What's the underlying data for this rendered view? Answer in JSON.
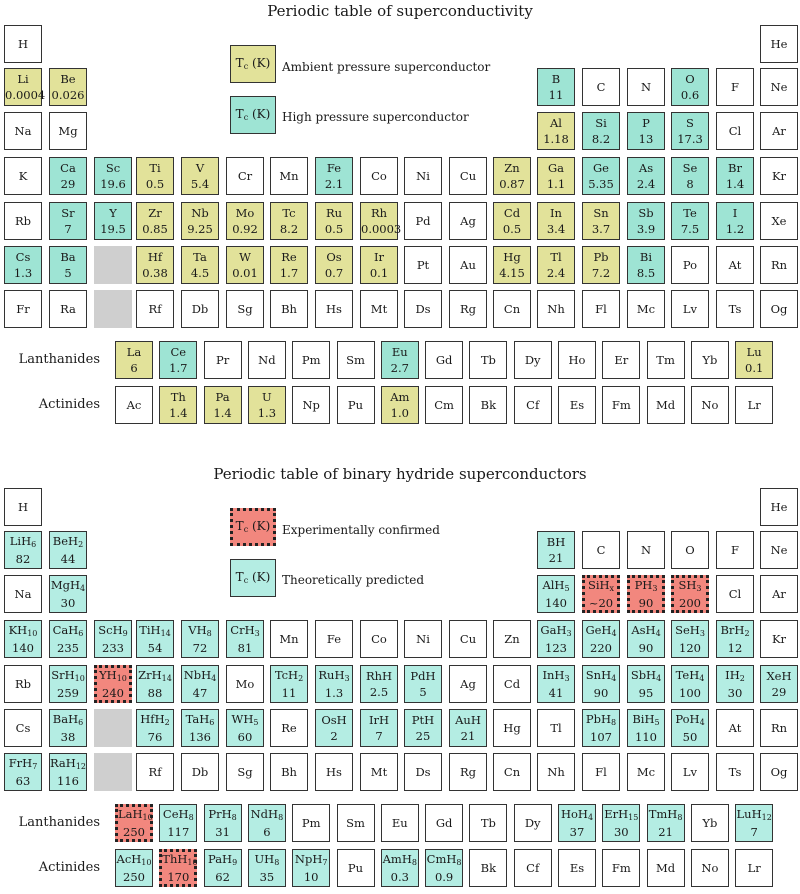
{
  "top": {
    "title": "Periodic table of superconductivity",
    "legend": [
      {
        "label": "T_c (K)",
        "text": "Ambient pressure superconductor",
        "type": "amb"
      },
      {
        "label": "T_c (K)",
        "text": "High pressure superconductor",
        "type": "hp"
      }
    ],
    "rows": [
      [
        {
          "c": 1,
          "s": "H"
        },
        {
          "c": 18,
          "s": "He"
        }
      ],
      [
        {
          "c": 1,
          "s": "Li",
          "v": "0.0004",
          "t": "amb"
        },
        {
          "c": 2,
          "s": "Be",
          "v": "0.026",
          "t": "amb"
        },
        {
          "c": 13,
          "s": "B",
          "v": "11",
          "t": "hp"
        },
        {
          "c": 14,
          "s": "C"
        },
        {
          "c": 15,
          "s": "N"
        },
        {
          "c": 16,
          "s": "O",
          "v": "0.6",
          "t": "hp"
        },
        {
          "c": 17,
          "s": "F"
        },
        {
          "c": 18,
          "s": "Ne"
        }
      ],
      [
        {
          "c": 1,
          "s": "Na"
        },
        {
          "c": 2,
          "s": "Mg"
        },
        {
          "c": 13,
          "s": "Al",
          "v": "1.18",
          "t": "amb"
        },
        {
          "c": 14,
          "s": "Si",
          "v": "8.2",
          "t": "hp"
        },
        {
          "c": 15,
          "s": "P",
          "v": "13",
          "t": "hp"
        },
        {
          "c": 16,
          "s": "S",
          "v": "17.3",
          "t": "hp"
        },
        {
          "c": 17,
          "s": "Cl"
        },
        {
          "c": 18,
          "s": "Ar"
        }
      ],
      [
        {
          "c": 1,
          "s": "K"
        },
        {
          "c": 2,
          "s": "Ca",
          "v": "29",
          "t": "hp"
        },
        {
          "c": 3,
          "s": "Sc",
          "v": "19.6",
          "t": "hp"
        },
        {
          "c": 4,
          "s": "Ti",
          "v": "0.5",
          "t": "amb"
        },
        {
          "c": 5,
          "s": "V",
          "v": "5.4",
          "t": "amb"
        },
        {
          "c": 6,
          "s": "Cr"
        },
        {
          "c": 7,
          "s": "Mn"
        },
        {
          "c": 8,
          "s": "Fe",
          "v": "2.1",
          "t": "hp"
        },
        {
          "c": 9,
          "s": "Co"
        },
        {
          "c": 10,
          "s": "Ni"
        },
        {
          "c": 11,
          "s": "Cu"
        },
        {
          "c": 12,
          "s": "Zn",
          "v": "0.87",
          "t": "amb"
        },
        {
          "c": 13,
          "s": "Ga",
          "v": "1.1",
          "t": "amb"
        },
        {
          "c": 14,
          "s": "Ge",
          "v": "5.35",
          "t": "hp"
        },
        {
          "c": 15,
          "s": "As",
          "v": "2.4",
          "t": "hp"
        },
        {
          "c": 16,
          "s": "Se",
          "v": "8",
          "t": "hp"
        },
        {
          "c": 17,
          "s": "Br",
          "v": "1.4",
          "t": "hp"
        },
        {
          "c": 18,
          "s": "Kr"
        }
      ],
      [
        {
          "c": 1,
          "s": "Rb"
        },
        {
          "c": 2,
          "s": "Sr",
          "v": "7",
          "t": "hp"
        },
        {
          "c": 3,
          "s": "Y",
          "v": "19.5",
          "t": "hp"
        },
        {
          "c": 4,
          "s": "Zr",
          "v": "0.85",
          "t": "amb"
        },
        {
          "c": 5,
          "s": "Nb",
          "v": "9.25",
          "t": "amb"
        },
        {
          "c": 6,
          "s": "Mo",
          "v": "0.92",
          "t": "amb"
        },
        {
          "c": 7,
          "s": "Tc",
          "v": "8.2",
          "t": "amb"
        },
        {
          "c": 8,
          "s": "Ru",
          "v": "0.5",
          "t": "amb"
        },
        {
          "c": 9,
          "s": "Rh",
          "v": "0.0003",
          "t": "amb"
        },
        {
          "c": 10,
          "s": "Pd"
        },
        {
          "c": 11,
          "s": "Ag"
        },
        {
          "c": 12,
          "s": "Cd",
          "v": "0.5",
          "t": "amb"
        },
        {
          "c": 13,
          "s": "In",
          "v": "3.4",
          "t": "amb"
        },
        {
          "c": 14,
          "s": "Sn",
          "v": "3.7",
          "t": "amb"
        },
        {
          "c": 15,
          "s": "Sb",
          "v": "3.9",
          "t": "hp"
        },
        {
          "c": 16,
          "s": "Te",
          "v": "7.5",
          "t": "hp"
        },
        {
          "c": 17,
          "s": "I",
          "v": "1.2",
          "t": "hp"
        },
        {
          "c": 18,
          "s": "Xe"
        }
      ],
      [
        {
          "c": 1,
          "s": "Cs",
          "v": "1.3",
          "t": "hp"
        },
        {
          "c": 2,
          "s": "Ba",
          "v": "5",
          "t": "hp"
        },
        {
          "c": 3,
          "s": "",
          "t": "gap"
        },
        {
          "c": 4,
          "s": "Hf",
          "v": "0.38",
          "t": "amb"
        },
        {
          "c": 5,
          "s": "Ta",
          "v": "4.5",
          "t": "amb"
        },
        {
          "c": 6,
          "s": "W",
          "v": "0.01",
          "t": "amb"
        },
        {
          "c": 7,
          "s": "Re",
          "v": "1.7",
          "t": "amb"
        },
        {
          "c": 8,
          "s": "Os",
          "v": "0.7",
          "t": "amb"
        },
        {
          "c": 9,
          "s": "Ir",
          "v": "0.1",
          "t": "amb"
        },
        {
          "c": 10,
          "s": "Pt"
        },
        {
          "c": 11,
          "s": "Au"
        },
        {
          "c": 12,
          "s": "Hg",
          "v": "4.15",
          "t": "amb"
        },
        {
          "c": 13,
          "s": "Tl",
          "v": "2.4",
          "t": "amb"
        },
        {
          "c": 14,
          "s": "Pb",
          "v": "7.2",
          "t": "amb"
        },
        {
          "c": 15,
          "s": "Bi",
          "v": "8.5",
          "t": "hp"
        },
        {
          "c": 16,
          "s": "Po"
        },
        {
          "c": 17,
          "s": "At"
        },
        {
          "c": 18,
          "s": "Rn"
        }
      ],
      [
        {
          "c": 1,
          "s": "Fr"
        },
        {
          "c": 2,
          "s": "Ra"
        },
        {
          "c": 3,
          "s": "",
          "t": "gap"
        },
        {
          "c": 4,
          "s": "Rf"
        },
        {
          "c": 5,
          "s": "Db"
        },
        {
          "c": 6,
          "s": "Sg"
        },
        {
          "c": 7,
          "s": "Bh"
        },
        {
          "c": 8,
          "s": "Hs"
        },
        {
          "c": 9,
          "s": "Mt"
        },
        {
          "c": 10,
          "s": "Ds"
        },
        {
          "c": 11,
          "s": "Rg"
        },
        {
          "c": 12,
          "s": "Cn"
        },
        {
          "c": 13,
          "s": "Nh"
        },
        {
          "c": 14,
          "s": "Fl"
        },
        {
          "c": 15,
          "s": "Mc"
        },
        {
          "c": 16,
          "s": "Lv"
        },
        {
          "c": 17,
          "s": "Ts"
        },
        {
          "c": 18,
          "s": "Og"
        }
      ]
    ],
    "lanthanides_label": "Lanthanides",
    "lanthanides": [
      {
        "s": "La",
        "v": "6",
        "t": "amb"
      },
      {
        "s": "Ce",
        "v": "1.7",
        "t": "hp"
      },
      {
        "s": "Pr"
      },
      {
        "s": "Nd"
      },
      {
        "s": "Pm"
      },
      {
        "s": "Sm"
      },
      {
        "s": "Eu",
        "v": "2.7",
        "t": "hp"
      },
      {
        "s": "Gd"
      },
      {
        "s": "Tb"
      },
      {
        "s": "Dy"
      },
      {
        "s": "Ho"
      },
      {
        "s": "Er"
      },
      {
        "s": "Tm"
      },
      {
        "s": "Yb"
      },
      {
        "s": "Lu",
        "v": "0.1",
        "t": "amb"
      }
    ],
    "actinides_label": "Actinides",
    "actinides": [
      {
        "s": "Ac"
      },
      {
        "s": "Th",
        "v": "1.4",
        "t": "amb"
      },
      {
        "s": "Pa",
        "v": "1.4",
        "t": "amb"
      },
      {
        "s": "U",
        "v": "1.3",
        "t": "amb"
      },
      {
        "s": "Np"
      },
      {
        "s": "Pu"
      },
      {
        "s": "Am",
        "v": "1.0",
        "t": "amb"
      },
      {
        "s": "Cm"
      },
      {
        "s": "Bk"
      },
      {
        "s": "Cf"
      },
      {
        "s": "Es"
      },
      {
        "s": "Fm"
      },
      {
        "s": "Md"
      },
      {
        "s": "No"
      },
      {
        "s": "Lr"
      }
    ]
  },
  "bottom": {
    "title": "Periodic table of binary hydride superconductors",
    "legend": [
      {
        "label": "T_c (K)",
        "text": "Experimentally confirmed",
        "type": "exp"
      },
      {
        "label": "T_c (K)",
        "text": "Theoretically predicted",
        "type": "theo"
      }
    ],
    "rows": [
      [
        {
          "c": 1,
          "s": "H"
        },
        {
          "c": 18,
          "s": "He"
        }
      ],
      [
        {
          "c": 1,
          "s": "LiH_6",
          "v": "82",
          "t": "theo"
        },
        {
          "c": 2,
          "s": "BeH_2",
          "v": "44",
          "t": "theo"
        },
        {
          "c": 13,
          "s": "BH",
          "v": "21",
          "t": "theo"
        },
        {
          "c": 14,
          "s": "C"
        },
        {
          "c": 15,
          "s": "N"
        },
        {
          "c": 16,
          "s": "O"
        },
        {
          "c": 17,
          "s": "F"
        },
        {
          "c": 18,
          "s": "Ne"
        }
      ],
      [
        {
          "c": 1,
          "s": "Na"
        },
        {
          "c": 2,
          "s": "MgH_4",
          "v": "30",
          "t": "theo"
        },
        {
          "c": 13,
          "s": "AlH_5",
          "v": "140",
          "t": "theo"
        },
        {
          "c": 14,
          "s": "SiH_x",
          "v": "~20",
          "t": "exp"
        },
        {
          "c": 15,
          "s": "PH_3",
          "v": "90",
          "t": "exp"
        },
        {
          "c": 16,
          "s": "SH_3",
          "v": "200",
          "t": "exp"
        },
        {
          "c": 17,
          "s": "Cl"
        },
        {
          "c": 18,
          "s": "Ar"
        }
      ],
      [
        {
          "c": 1,
          "s": "KH_10",
          "v": "140",
          "t": "theo"
        },
        {
          "c": 2,
          "s": "CaH_6",
          "v": "235",
          "t": "theo"
        },
        {
          "c": 3,
          "s": "ScH_9",
          "v": "233",
          "t": "theo"
        },
        {
          "c": 4,
          "s": "TiH_14",
          "v": "54",
          "t": "theo"
        },
        {
          "c": 5,
          "s": "VH_8",
          "v": "72",
          "t": "theo"
        },
        {
          "c": 6,
          "s": "CrH_3",
          "v": "81",
          "t": "theo"
        },
        {
          "c": 7,
          "s": "Mn"
        },
        {
          "c": 8,
          "s": "Fe"
        },
        {
          "c": 9,
          "s": "Co"
        },
        {
          "c": 10,
          "s": "Ni"
        },
        {
          "c": 11,
          "s": "Cu"
        },
        {
          "c": 12,
          "s": "Zn"
        },
        {
          "c": 13,
          "s": "GaH_3",
          "v": "123",
          "t": "theo"
        },
        {
          "c": 14,
          "s": "GeH_4",
          "v": "220",
          "t": "theo"
        },
        {
          "c": 15,
          "s": "AsH_4",
          "v": "90",
          "t": "theo"
        },
        {
          "c": 16,
          "s": "SeH_3",
          "v": "120",
          "t": "theo"
        },
        {
          "c": 17,
          "s": "BrH_2",
          "v": "12",
          "t": "theo"
        },
        {
          "c": 18,
          "s": "Kr"
        }
      ],
      [
        {
          "c": 1,
          "s": "Rb"
        },
        {
          "c": 2,
          "s": "SrH_10",
          "v": "259",
          "t": "theo"
        },
        {
          "c": 3,
          "s": "YH_10",
          "v": "240",
          "t": "exp"
        },
        {
          "c": 4,
          "s": "ZrH_14",
          "v": "88",
          "t": "theo"
        },
        {
          "c": 5,
          "s": "NbH_4",
          "v": "47",
          "t": "theo"
        },
        {
          "c": 6,
          "s": "Mo"
        },
        {
          "c": 7,
          "s": "TcH_2",
          "v": "11",
          "t": "theo"
        },
        {
          "c": 8,
          "s": "RuH_3",
          "v": "1.3",
          "t": "theo"
        },
        {
          "c": 9,
          "s": "RhH",
          "v": "2.5",
          "t": "theo"
        },
        {
          "c": 10,
          "s": "PdH",
          "v": "5",
          "t": "theo"
        },
        {
          "c": 11,
          "s": "Ag"
        },
        {
          "c": 12,
          "s": "Cd"
        },
        {
          "c": 13,
          "s": "InH_3",
          "v": "41",
          "t": "theo"
        },
        {
          "c": 14,
          "s": "SnH_4",
          "v": "90",
          "t": "theo"
        },
        {
          "c": 15,
          "s": "SbH_4",
          "v": "95",
          "t": "theo"
        },
        {
          "c": 16,
          "s": "TeH_4",
          "v": "100",
          "t": "theo"
        },
        {
          "c": 17,
          "s": "IH_2",
          "v": "30",
          "t": "theo"
        },
        {
          "c": 18,
          "s": "XeH",
          "v": "29",
          "t": "theo"
        }
      ],
      [
        {
          "c": 1,
          "s": "Cs"
        },
        {
          "c": 2,
          "s": "BaH_6",
          "v": "38",
          "t": "theo"
        },
        {
          "c": 3,
          "s": "",
          "t": "gap"
        },
        {
          "c": 4,
          "s": "HfH_2",
          "v": "76",
          "t": "theo"
        },
        {
          "c": 5,
          "s": "TaH_6",
          "v": "136",
          "t": "theo"
        },
        {
          "c": 6,
          "s": "WH_5",
          "v": "60",
          "t": "theo"
        },
        {
          "c": 7,
          "s": "Re"
        },
        {
          "c": 8,
          "s": "OsH",
          "v": "2",
          "t": "theo"
        },
        {
          "c": 9,
          "s": "IrH",
          "v": "7",
          "t": "theo"
        },
        {
          "c": 10,
          "s": "PtH",
          "v": "25",
          "t": "theo"
        },
        {
          "c": 11,
          "s": "AuH",
          "v": "21",
          "t": "theo"
        },
        {
          "c": 12,
          "s": "Hg"
        },
        {
          "c": 13,
          "s": "Tl"
        },
        {
          "c": 14,
          "s": "PbH_8",
          "v": "107",
          "t": "theo"
        },
        {
          "c": 15,
          "s": "BiH_5",
          "v": "110",
          "t": "theo"
        },
        {
          "c": 16,
          "s": "PoH_4",
          "v": "50",
          "t": "theo"
        },
        {
          "c": 17,
          "s": "At"
        },
        {
          "c": 18,
          "s": "Rn"
        }
      ],
      [
        {
          "c": 1,
          "s": "FrH_7",
          "v": "63",
          "t": "theo"
        },
        {
          "c": 2,
          "s": "RaH_12",
          "v": "116",
          "t": "theo"
        },
        {
          "c": 3,
          "s": "",
          "t": "gap"
        },
        {
          "c": 4,
          "s": "Rf"
        },
        {
          "c": 5,
          "s": "Db"
        },
        {
          "c": 6,
          "s": "Sg"
        },
        {
          "c": 7,
          "s": "Bh"
        },
        {
          "c": 8,
          "s": "Hs"
        },
        {
          "c": 9,
          "s": "Mt"
        },
        {
          "c": 10,
          "s": "Ds"
        },
        {
          "c": 11,
          "s": "Rg"
        },
        {
          "c": 12,
          "s": "Cn"
        },
        {
          "c": 13,
          "s": "Nh"
        },
        {
          "c": 14,
          "s": "Fl"
        },
        {
          "c": 15,
          "s": "Mc"
        },
        {
          "c": 16,
          "s": "Lv"
        },
        {
          "c": 17,
          "s": "Ts"
        },
        {
          "c": 18,
          "s": "Og"
        }
      ]
    ],
    "lanthanides_label": "Lanthanides",
    "lanthanides": [
      {
        "s": "LaH_10",
        "v": "250",
        "t": "exp"
      },
      {
        "s": "CeH_8",
        "v": "117",
        "t": "theo"
      },
      {
        "s": "PrH_8",
        "v": "31",
        "t": "theo"
      },
      {
        "s": "NdH_8",
        "v": "6",
        "t": "theo"
      },
      {
        "s": "Pm"
      },
      {
        "s": "Sm"
      },
      {
        "s": "Eu"
      },
      {
        "s": "Gd"
      },
      {
        "s": "Tb"
      },
      {
        "s": "Dy"
      },
      {
        "s": "HoH_4",
        "v": "37",
        "t": "theo"
      },
      {
        "s": "ErH_15",
        "v": "30",
        "t": "theo"
      },
      {
        "s": "TmH_8",
        "v": "21",
        "t": "theo"
      },
      {
        "s": "Yb"
      },
      {
        "s": "LuH_12",
        "v": "7",
        "t": "theo"
      }
    ],
    "actinides_label": "Actinides",
    "actinides": [
      {
        "s": "AcH_10",
        "v": "250",
        "t": "theo"
      },
      {
        "s": "ThH_10",
        "v": "170",
        "t": "exp"
      },
      {
        "s": "PaH_9",
        "v": "62",
        "t": "theo"
      },
      {
        "s": "UH_8",
        "v": "35",
        "t": "theo"
      },
      {
        "s": "NpH_7",
        "v": "10",
        "t": "theo"
      },
      {
        "s": "Pu"
      },
      {
        "s": "AmH_8",
        "v": "0.3",
        "t": "theo"
      },
      {
        "s": "CmH_8",
        "v": "0.9",
        "t": "theo"
      },
      {
        "s": "Bk"
      },
      {
        "s": "Cf"
      },
      {
        "s": "Es"
      },
      {
        "s": "Fm"
      },
      {
        "s": "Md"
      },
      {
        "s": "No"
      },
      {
        "s": "Lr"
      }
    ]
  }
}
